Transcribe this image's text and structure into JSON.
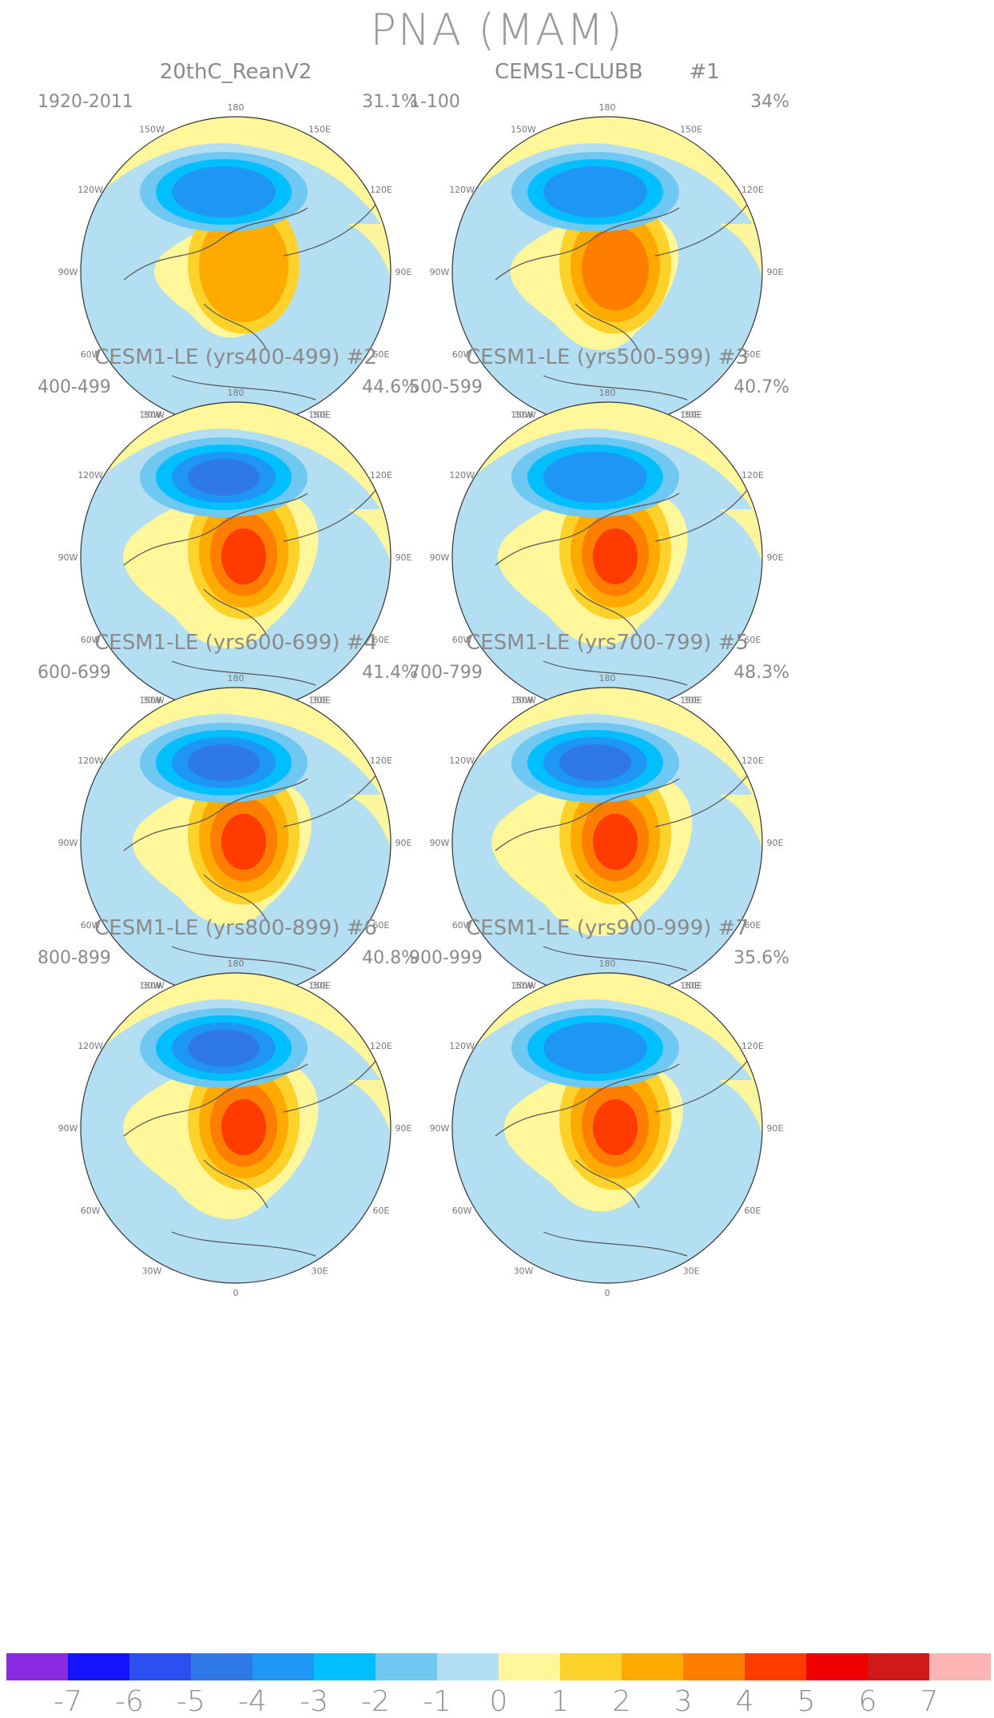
{
  "title": "PNA (MAM)",
  "lon_labels": [
    "180",
    "150E",
    "120E",
    "90E",
    "60E",
    "30E",
    "0",
    "30W",
    "60W",
    "90W",
    "120W",
    "150W"
  ],
  "panels": [
    {
      "id": "20thc",
      "title": "20thC_ReanV2",
      "period": "1920-2011",
      "percent": "31.1%",
      "neg_amp": 0.55,
      "pos_amp": 0.3
    },
    {
      "id": "p1",
      "title": "CEMS1-CLUBB       #1",
      "period": "1-100",
      "percent": "34%",
      "neg_amp": 0.6,
      "pos_amp": 0.55
    },
    {
      "id": "p2",
      "title": "CESM1-LE (yrs400-499) #2",
      "period": "400-499",
      "percent": "44.6%",
      "neg_amp": 0.7,
      "pos_amp": 0.8
    },
    {
      "id": "p3",
      "title": "CESM1-LE (yrs500-599) #3",
      "period": "500-599",
      "percent": "40.7%",
      "neg_amp": 0.6,
      "pos_amp": 0.75
    },
    {
      "id": "p4",
      "title": "CESM1-LE (yrs600-699) #4",
      "period": "600-699",
      "percent": "41.4%",
      "neg_amp": 0.65,
      "pos_amp": 0.65
    },
    {
      "id": "p5",
      "title": "CESM1-LE (yrs700-799) #5",
      "period": "700-799",
      "percent": "48.3%",
      "neg_amp": 0.75,
      "pos_amp": 0.85
    },
    {
      "id": "p6",
      "title": "CESM1-LE (yrs800-899) #6",
      "period": "800-899",
      "percent": "40.8%",
      "neg_amp": 0.65,
      "pos_amp": 0.8
    },
    {
      "id": "p7",
      "title": "CESM1-LE (yrs900-999) #7",
      "period": "900-999",
      "percent": "35.6%",
      "neg_amp": 0.6,
      "pos_amp": 0.65
    }
  ],
  "colorbar": {
    "colors": [
      "#8a2be2",
      "#1414ff",
      "#2b4ff0",
      "#2f78e8",
      "#1e96f5",
      "#00bfff",
      "#6fc8f2",
      "#b4def2",
      "#fff799",
      "#ffd22b",
      "#ffaa00",
      "#ff7e00",
      "#ff3b00",
      "#f00000",
      "#d21919",
      "#ffb4b4"
    ],
    "labels": [
      "-7",
      "-6",
      "-5",
      "-4",
      "-3",
      "-2",
      "-1",
      "0",
      "1",
      "2",
      "3",
      "4",
      "5",
      "6",
      "7"
    ]
  }
}
